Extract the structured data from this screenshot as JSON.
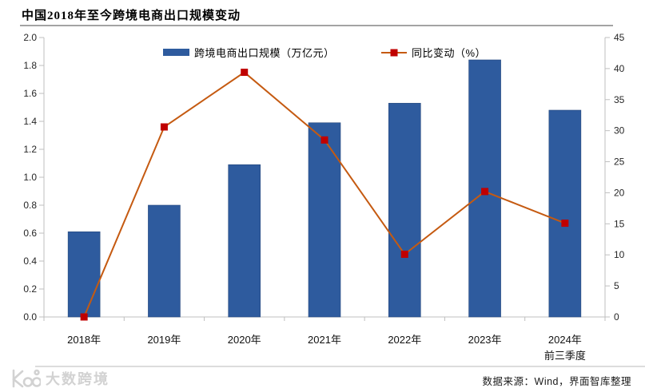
{
  "page": {
    "title": "中国2018年至今跨境电商出口规模变动",
    "source_note": "数据来源：Wind，界面智库整理",
    "watermark": "大数跨境"
  },
  "legend": [
    {
      "label": "跨境电商出口规模（万亿元）",
      "type": "bar",
      "color": "#2e5b9e"
    },
    {
      "label": "同比变动（%）",
      "type": "line",
      "color": "#c55a11",
      "marker_color": "#c00000"
    }
  ],
  "chart_data": {
    "type": "bar+line",
    "title": "中国2018年至今跨境电商出口规模变动",
    "categories": [
      {
        "label": "2018年"
      },
      {
        "label": "2019年"
      },
      {
        "label": "2020年"
      },
      {
        "label": "2021年"
      },
      {
        "label": "2022年"
      },
      {
        "label": "2023年"
      },
      {
        "label": "2024年",
        "sublabel": "前三季度"
      }
    ],
    "series": [
      {
        "name": "跨境电商出口规模（万亿元）",
        "type": "bar",
        "axis": "left",
        "color": "#2e5b9e",
        "values": [
          0.61,
          0.8,
          1.09,
          1.39,
          1.53,
          1.84,
          1.48
        ]
      },
      {
        "name": "同比变动（%）",
        "type": "line",
        "axis": "right",
        "color": "#c55a11",
        "marker_color": "#c00000",
        "values": [
          0,
          30.6,
          39.4,
          28.5,
          10.1,
          20.2,
          15.1
        ]
      }
    ],
    "left_axis": {
      "min": 0,
      "max": 2.0,
      "step": 0.2,
      "decimals": 1
    },
    "right_axis": {
      "min": 0,
      "max": 45,
      "step": 5,
      "decimals": 0
    },
    "grid": false,
    "legend_position": "top-inside",
    "axis_color": "#bfbfbf"
  }
}
